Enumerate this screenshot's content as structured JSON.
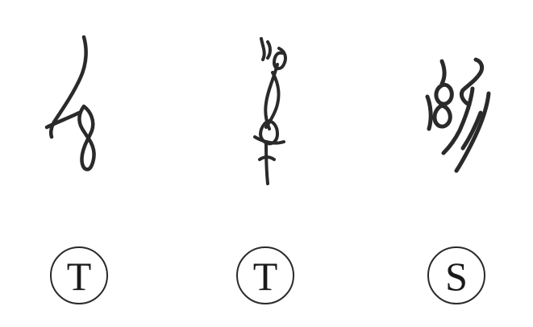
{
  "labels": [
    {
      "letter": "T"
    },
    {
      "letter": "T"
    },
    {
      "letter": "S"
    }
  ],
  "colors": {
    "ink": "#2a2a2a",
    "background": "#ffffff"
  }
}
